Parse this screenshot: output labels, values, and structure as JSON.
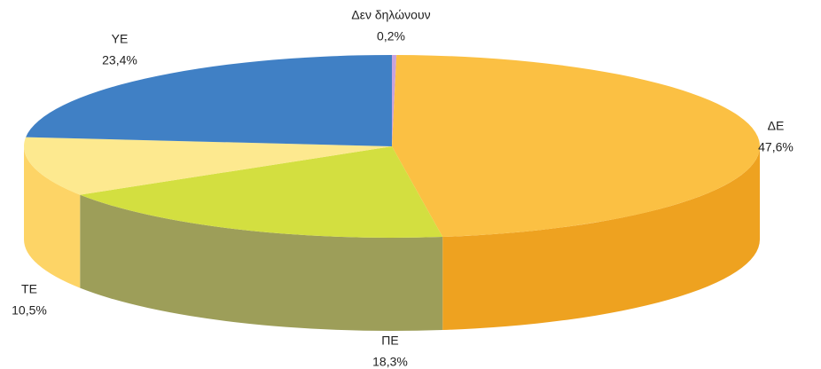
{
  "chart_data": {
    "type": "pie3d",
    "categories": [
      "Δεν δηλώνουν",
      "ΔΕ",
      "ΠΕ",
      "ΤΕ",
      "ΥΕ"
    ],
    "values": [
      0.2,
      47.6,
      18.3,
      10.5,
      23.4
    ],
    "value_labels": [
      "0,2%",
      "47,6%",
      "18,3%",
      "10,5%",
      "23,4%"
    ],
    "colors": [
      "#c9a3dd",
      "#fbc043",
      "#d3df40",
      "#fde98f",
      "#4080c5"
    ],
    "side_colors": [
      "#a882bb",
      "#eea220",
      "#9d9e59",
      "#fdd466",
      "#2e62a0"
    ]
  }
}
